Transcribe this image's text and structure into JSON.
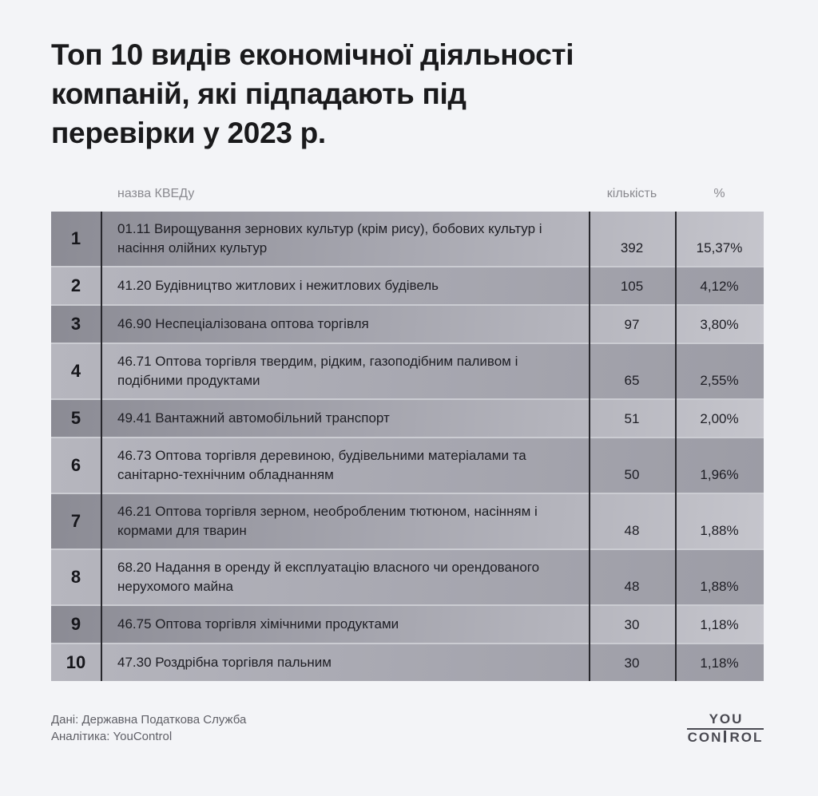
{
  "title_lines": [
    "Топ 10 видів економічної діяльності",
    "компаній, які підпадають під",
    "перевірки у 2023 р."
  ],
  "table": {
    "headers": {
      "name": "назва КВЕДу",
      "count": "кількість",
      "percent": "%"
    },
    "rows": [
      {
        "rank": "1",
        "name": "01.11 Вирощування зернових культур (крім рису), бобових культур і насіння олійних культур",
        "count": "392",
        "percent": "15,37%"
      },
      {
        "rank": "2",
        "name": "41.20 Будівництво житлових і нежитлових будівель",
        "count": "105",
        "percent": "4,12%"
      },
      {
        "rank": "3",
        "name": "46.90 Неспеціалізована оптова торгівля",
        "count": "97",
        "percent": "3,80%"
      },
      {
        "rank": "4",
        "name": "46.71 Оптова торгівля твердим, рідким, газоподібним паливом і подібними продуктами",
        "count": "65",
        "percent": "2,55%"
      },
      {
        "rank": "5",
        "name": "49.41 Вантажний автомобільний транспорт",
        "count": "51",
        "percent": "2,00%"
      },
      {
        "rank": "6",
        "name": "46.73 Оптова торгівля деревиною, будівельними матеріалами та санітарно-технічним обладнанням",
        "count": "50",
        "percent": "1,96%"
      },
      {
        "rank": "7",
        "name": "46.21 Оптова торгівля зерном, необробленим тютюном, насінням і кормами для тварин",
        "count": "48",
        "percent": "1,88%"
      },
      {
        "rank": "8",
        "name": "68.20 Надання в оренду й експлуатацію власного чи орендованого нерухомого майна",
        "count": "48",
        "percent": "1,88%"
      },
      {
        "rank": "9",
        "name": "46.75 Оптова торгівля хімічними продуктами",
        "count": "30",
        "percent": "1,18%"
      },
      {
        "rank": "10",
        "name": "47.30 Роздрібна торгівля пальним",
        "count": "30",
        "percent": "1,18%"
      }
    ]
  },
  "footer": {
    "source": "Дані: Державна Податкова Служба",
    "analytics": "Аналітика: YouControl"
  },
  "logo": {
    "top": "YOU",
    "bottom_left": "CON",
    "bottom_right": "ROL"
  },
  "colors": {
    "page_bg": "#f3f4f7",
    "title_text": "#1a1a1c",
    "header_text": "#8a8a90",
    "body_text": "#1e1e24",
    "divider_line": "#27272c",
    "row_gradient_dark": "#8b8b94",
    "row_gradient_light": "#c5c5cc",
    "row_separator": "#cbccd2",
    "footer_text": "#5f5f66",
    "logo_color": "#4a4a52"
  },
  "chart_data": {
    "type": "table",
    "title": "Топ 10 видів економічної діяльності компаній, які підпадають під перевірки у 2023 р.",
    "columns": [
      "№",
      "назва КВЕДу",
      "кількість",
      "%"
    ],
    "rows": [
      [
        1,
        "01.11 Вирощування зернових культур (крім рису), бобових культур і насіння олійних культур",
        392,
        "15,37%"
      ],
      [
        2,
        "41.20 Будівництво житлових і нежитлових будівель",
        105,
        "4,12%"
      ],
      [
        3,
        "46.90 Неспеціалізована оптова торгівля",
        97,
        "3,80%"
      ],
      [
        4,
        "46.71 Оптова торгівля твердим, рідким, газоподібним паливом і подібними продуктами",
        65,
        "2,55%"
      ],
      [
        5,
        "49.41 Вантажний автомобільний транспорт",
        51,
        "2,00%"
      ],
      [
        6,
        "46.73 Оптова торгівля деревиною, будівельними матеріалами та санітарно-технічним обладнанням",
        50,
        "1,96%"
      ],
      [
        7,
        "46.21 Оптова торгівля зерном, необробленим тютюном, насінням і кормами для тварин",
        48,
        "1,88%"
      ],
      [
        8,
        "68.20 Надання в оренду й експлуатацію власного чи орендованого нерухомого майна",
        48,
        "1,88%"
      ],
      [
        9,
        "46.75 Оптова торгівля хімічними продуктами",
        30,
        "1,18%"
      ],
      [
        10,
        "47.30 Роздрібна торгівля пальним",
        30,
        "1,18%"
      ]
    ],
    "source": "Дані: Державна Податкова Служба",
    "analytics": "Аналітика: YouControl"
  }
}
